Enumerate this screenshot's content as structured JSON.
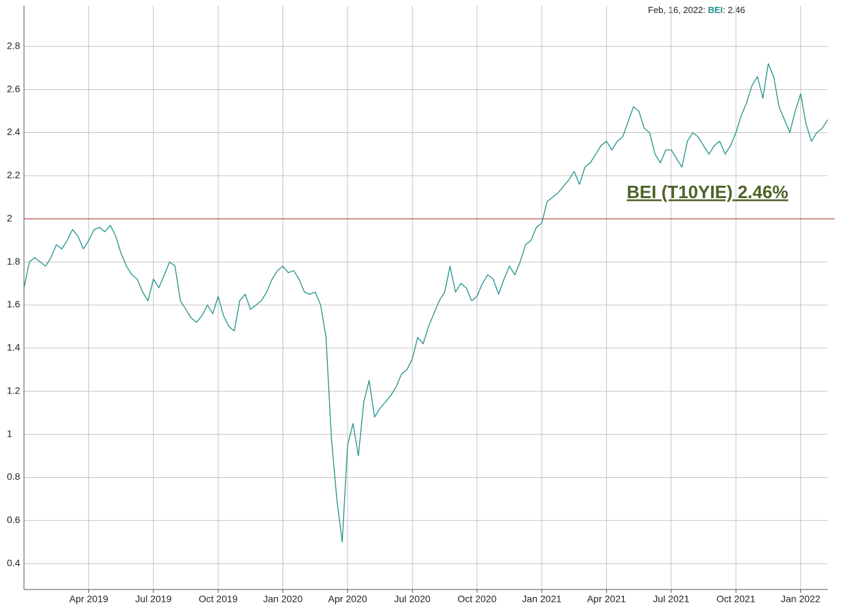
{
  "chart_data": {
    "type": "line",
    "categories": [
      null,
      null,
      null,
      null,
      null,
      null,
      null,
      null,
      null,
      null,
      null,
      null,
      "Apr 2019",
      null,
      null,
      null,
      null,
      null,
      null,
      null,
      null,
      null,
      null,
      null,
      "Jul 2019",
      null,
      null,
      null,
      null,
      null,
      null,
      null,
      null,
      null,
      null,
      null,
      "Oct 2019",
      null,
      null,
      null,
      null,
      null,
      null,
      null,
      null,
      null,
      null,
      null,
      "Jan 2020",
      null,
      null,
      null,
      null,
      null,
      null,
      null,
      null,
      null,
      null,
      null,
      "Apr 2020",
      null,
      null,
      null,
      null,
      null,
      null,
      null,
      null,
      null,
      null,
      null,
      "Jul 2020",
      null,
      null,
      null,
      null,
      null,
      null,
      null,
      null,
      null,
      null,
      null,
      "Oct 2020",
      null,
      null,
      null,
      null,
      null,
      null,
      null,
      null,
      null,
      null,
      null,
      "Jan 2021",
      null,
      null,
      null,
      null,
      null,
      null,
      null,
      null,
      null,
      null,
      null,
      "Apr 2021",
      null,
      null,
      null,
      null,
      null,
      null,
      null,
      null,
      null,
      null,
      null,
      "Jul 2021",
      null,
      null,
      null,
      null,
      null,
      null,
      null,
      null,
      null,
      null,
      null,
      "Oct 2021",
      null,
      null,
      null,
      null,
      null,
      null,
      null,
      null,
      null,
      null,
      null,
      "Jan 2022",
      null,
      null,
      null,
      null,
      null
    ],
    "series": [
      {
        "name": "BEI",
        "color": "#21918c",
        "values": [
          1.68,
          1.8,
          1.82,
          1.8,
          1.78,
          1.82,
          1.88,
          1.86,
          1.9,
          1.95,
          1.92,
          1.86,
          1.9,
          1.95,
          1.96,
          1.94,
          1.97,
          1.92,
          1.84,
          1.78,
          1.74,
          1.72,
          1.66,
          1.62,
          1.72,
          1.68,
          1.74,
          1.8,
          1.78,
          1.62,
          1.58,
          1.54,
          1.52,
          1.55,
          1.6,
          1.56,
          1.64,
          1.55,
          1.5,
          1.48,
          1.62,
          1.65,
          1.58,
          1.6,
          1.62,
          1.66,
          1.72,
          1.76,
          1.78,
          1.75,
          1.76,
          1.72,
          1.66,
          1.65,
          1.66,
          1.6,
          1.45,
          0.98,
          0.7,
          0.5,
          0.95,
          1.05,
          0.9,
          1.15,
          1.25,
          1.08,
          1.12,
          1.15,
          1.18,
          1.22,
          1.28,
          1.3,
          1.35,
          1.45,
          1.42,
          1.5,
          1.56,
          1.62,
          1.66,
          1.78,
          1.66,
          1.7,
          1.68,
          1.62,
          1.64,
          1.7,
          1.74,
          1.72,
          1.65,
          1.72,
          1.78,
          1.74,
          1.8,
          1.88,
          1.9,
          1.96,
          1.98,
          2.08,
          2.1,
          2.12,
          2.15,
          2.18,
          2.22,
          2.16,
          2.24,
          2.26,
          2.3,
          2.34,
          2.36,
          2.32,
          2.36,
          2.38,
          2.45,
          2.52,
          2.5,
          2.42,
          2.4,
          2.3,
          2.26,
          2.32,
          2.32,
          2.28,
          2.24,
          2.36,
          2.4,
          2.38,
          2.34,
          2.3,
          2.34,
          2.36,
          2.3,
          2.34,
          2.4,
          2.48,
          2.54,
          2.62,
          2.66,
          2.56,
          2.72,
          2.66,
          2.52,
          2.46,
          2.4,
          2.5,
          2.58,
          2.44,
          2.36,
          2.4,
          2.42,
          2.46
        ]
      }
    ],
    "ylim": [
      0.28,
      2.99
    ],
    "yticks": [
      0.4,
      0.6,
      0.8,
      1,
      1.2,
      1.4,
      1.6,
      1.8,
      2,
      2.2,
      2.4,
      2.6,
      2.8
    ],
    "grid": true,
    "reference_line": {
      "value": 2,
      "color": "#c0504d"
    },
    "annotation": "BEI (T10YIE) 2.46%",
    "annotation_color": "#4f6228",
    "tooltip": [
      "Feb, 16, 2022: ",
      ": 2.46"
    ]
  }
}
